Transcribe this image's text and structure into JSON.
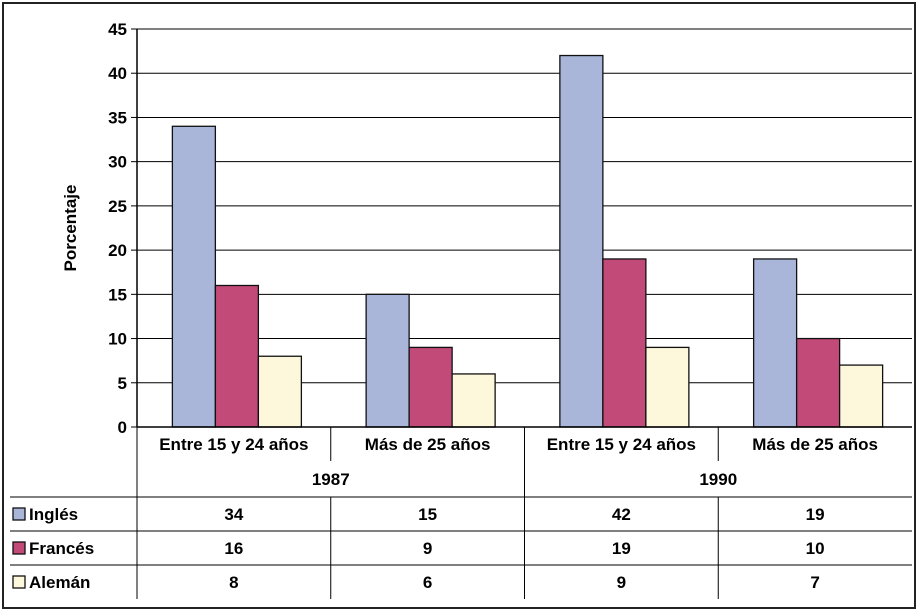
{
  "chart_data": {
    "type": "bar",
    "title": "",
    "ylabel": "Porcentaje",
    "xlabel": "",
    "ylim": [
      0,
      45
    ],
    "yticks": [
      0,
      5,
      10,
      15,
      20,
      25,
      30,
      35,
      40,
      45
    ],
    "grid": true,
    "groups": [
      {
        "label": "1987",
        "categories": [
          "Entre 15 y 24 años",
          "Más de 25 años"
        ]
      },
      {
        "label": "1990",
        "categories": [
          "Entre 15 y 24 años",
          "Más de 25 años"
        ]
      }
    ],
    "categories": [
      "Entre 15 y 24 años",
      "Más de 25 años",
      "Entre 15 y 24 años",
      "Más de 25 años"
    ],
    "series": [
      {
        "name": "Inglés",
        "color": "#a9b6da",
        "values": [
          34,
          15,
          42,
          19
        ]
      },
      {
        "name": "Francés",
        "color": "#c24a78",
        "values": [
          16,
          9,
          19,
          10
        ]
      },
      {
        "name": "Alemán",
        "color": "#fdf8dc",
        "values": [
          8,
          6,
          9,
          7
        ]
      }
    ],
    "legend": "data-table"
  }
}
